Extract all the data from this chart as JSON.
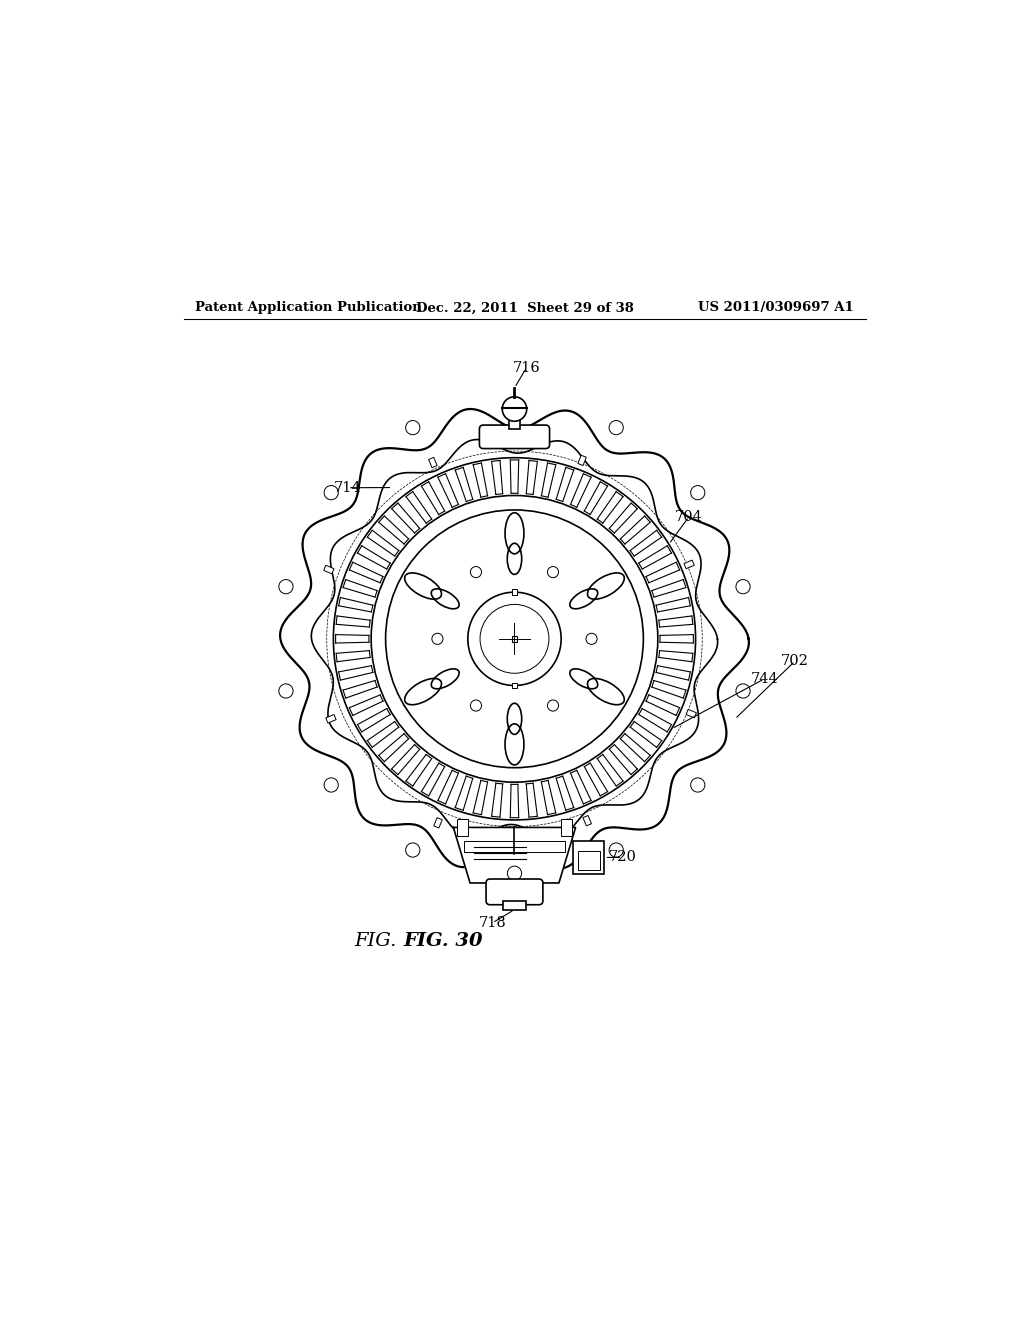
{
  "bg_color": "#ffffff",
  "line_color": "#000000",
  "header_left": "Patent Application Publication",
  "header_mid": "Dec. 22, 2011  Sheet 29 of 38",
  "header_right": "US 2011/0309697 A1",
  "fig_label": "FIG. 30",
  "mcx": 0.487,
  "mcy": 0.535,
  "scale": 0.28,
  "n_housing_lobes": 14,
  "n_stator_teeth": 60,
  "n_rotor_oval_outer": 6,
  "n_rotor_oval_inner": 6,
  "n_rotor_dots": 6
}
